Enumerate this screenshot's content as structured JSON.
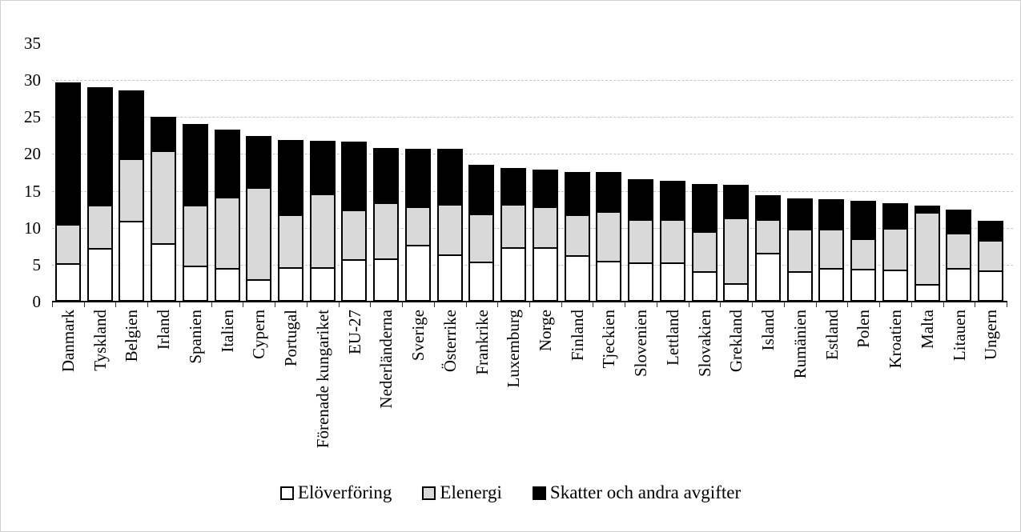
{
  "chart_data": {
    "type": "bar",
    "subtype": "stacked",
    "categories": [
      "Danmark",
      "Tyskland",
      "Belgien",
      "Irland",
      "Spanien",
      "Italien",
      "Cypern",
      "Portugal",
      "Förenade kungariket",
      "EU-27",
      "Nederländerna",
      "Sverige",
      "Österrike",
      "Frankrike",
      "Luxemburg",
      "Norge",
      "Finland",
      "Tjeckien",
      "Slovenien",
      "Lettland",
      "Slovakien",
      "Grekland",
      "Island",
      "Rumänien",
      "Estland",
      "Polen",
      "Kroatien",
      "Malta",
      "Litauen",
      "Ungern"
    ],
    "series": [
      {
        "name": "Elöverföring",
        "color": "#ffffff",
        "values": [
          5.2,
          7.3,
          10.9,
          7.9,
          4.9,
          4.6,
          3.0,
          4.7,
          4.7,
          5.8,
          5.8,
          7.7,
          6.4,
          5.4,
          7.4,
          7.4,
          6.3,
          5.5,
          5.3,
          5.3,
          4.1,
          2.5,
          6.6,
          4.1,
          4.6,
          4.5,
          4.3,
          2.4,
          4.6,
          4.2
        ]
      },
      {
        "name": "Elenergi",
        "color": "#d9d9d9",
        "values": [
          5.3,
          5.8,
          8.5,
          12.6,
          8.2,
          9.6,
          12.5,
          7.1,
          9.9,
          6.7,
          7.6,
          5.2,
          6.8,
          6.5,
          5.8,
          5.5,
          5.5,
          6.8,
          5.9,
          5.9,
          5.4,
          8.9,
          4.6,
          5.8,
          5.3,
          4.1,
          5.7,
          9.7,
          4.7,
          4.2
        ]
      },
      {
        "name": "Skatter och andra avgifter",
        "color": "#000000",
        "values": [
          19.2,
          15.9,
          9.2,
          4.5,
          11.0,
          9.1,
          6.9,
          10.1,
          7.2,
          9.2,
          7.4,
          7.8,
          7.5,
          6.6,
          4.9,
          5.0,
          5.8,
          5.3,
          5.4,
          5.2,
          6.4,
          4.4,
          3.2,
          4.1,
          4.0,
          5.1,
          3.3,
          0.9,
          3.2,
          2.6
        ]
      }
    ],
    "totals": [
      29.7,
      29.0,
      28.6,
      25.0,
      24.1,
      23.3,
      22.4,
      21.9,
      21.8,
      21.7,
      20.8,
      20.7,
      20.7,
      18.5,
      18.1,
      17.9,
      17.6,
      17.6,
      16.6,
      16.4,
      15.9,
      15.8,
      14.4,
      14.0,
      13.9,
      13.7,
      13.3,
      13.0,
      12.5,
      11.0
    ],
    "title": "",
    "xlabel": "",
    "ylabel": "",
    "y_axis": {
      "min": 0,
      "max": 35,
      "step": 5,
      "tick_labels": [
        "0",
        "5",
        "10",
        "15",
        "20",
        "25",
        "30",
        "35"
      ]
    },
    "gridline_values": [
      5,
      10,
      15,
      20,
      25,
      30
    ],
    "grid": "on",
    "legend_position": "bottom",
    "legend": [
      "Elöverföring",
      "Elenergi",
      "Skatter och andra avgifter"
    ]
  }
}
